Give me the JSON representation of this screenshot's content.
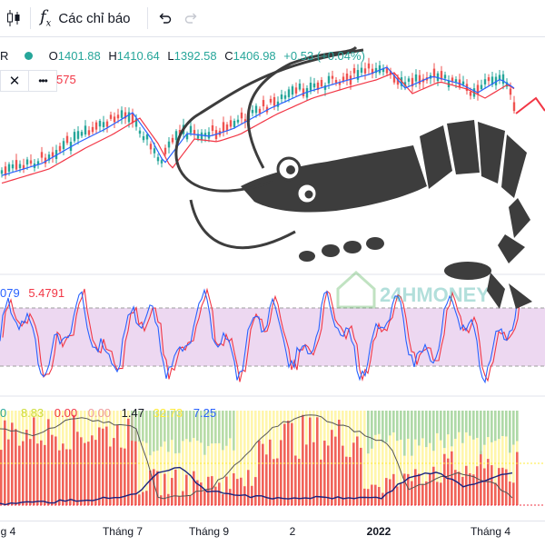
{
  "toolbar": {
    "indicators_label": "Các chỉ báo",
    "indicator_icon": "fx-icon",
    "undo_icon": "undo-icon",
    "redo_icon": "redo-icon",
    "chart_type_icon": "candles-icon"
  },
  "main_legend": {
    "symbol_suffix": "R",
    "open_label": "O",
    "open": "1401.88",
    "high_label": "H",
    "high": "1410.64",
    "low_label": "L",
    "low": "1392.58",
    "close_label": "C",
    "close": "1406.98",
    "change": "+0.53 (+0.04%)",
    "ma_value_partial": "575",
    "close_icon": "close-icon",
    "more_icon": "more-icon"
  },
  "stoch_legend": {
    "k_partial": "079",
    "d": "5.4791"
  },
  "bottom_legend": {
    "v1": "0",
    "v2": "8.83",
    "v3": "0.00",
    "v4": "0.00",
    "v5": "1.47",
    "v6": "32.73",
    "v7": "7.25"
  },
  "watermark": {
    "text": "24HMONEY"
  },
  "time_axis": {
    "ticks": [
      "g 4",
      "Tháng 7",
      "Tháng 9",
      "2",
      "2022",
      "Tháng 4"
    ]
  },
  "colors": {
    "up": "#26a69a",
    "down": "#ef5350",
    "ma_blue": "#2962ff",
    "ma_red": "#f23645",
    "stoch_band": "#e1bee7",
    "shrimp": "#3d3d3d"
  }
}
